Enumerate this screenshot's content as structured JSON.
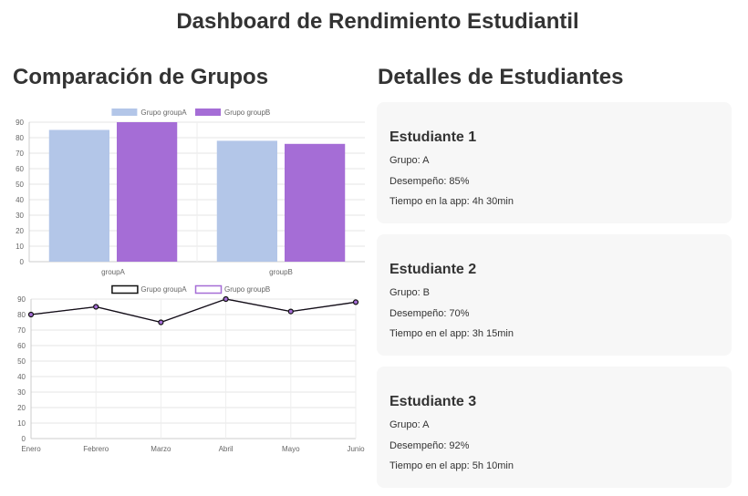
{
  "header": {
    "title": "Dashboard de Rendimiento Estudiantil"
  },
  "left": {
    "title": "Comparación de Grupos"
  },
  "right": {
    "title": "Detalles de Estudiantes"
  },
  "students": [
    {
      "name": "Estudiante 1",
      "group": "Grupo: A",
      "performance": "Desempeño: 85%",
      "time": "Tiempo en la app: 4h 30min"
    },
    {
      "name": "Estudiante 2",
      "group": "Grupo: B",
      "performance": "Desempeño: 70%",
      "time": "Tiempo en el app: 3h 15min"
    },
    {
      "name": "Estudiante 3",
      "group": "Grupo: A",
      "performance": "Desempeño: 92%",
      "time": "Tiempo en el app: 5h 10min"
    }
  ],
  "chart_data": [
    {
      "type": "bar",
      "categories": [
        "groupA",
        "groupB"
      ],
      "series": [
        {
          "name": "Grupo groupA",
          "values": [
            85,
            78
          ],
          "color": "#b3c6e8"
        },
        {
          "name": "Grupo groupB",
          "values": [
            90,
            76
          ],
          "color": "#a56dd6"
        }
      ],
      "ylim": [
        0,
        90
      ],
      "yticks": [
        0,
        10,
        20,
        30,
        40,
        50,
        60,
        70,
        80,
        90
      ],
      "legend": "top",
      "grid": true
    },
    {
      "type": "line",
      "categories": [
        "Enero",
        "Febrero",
        "Marzo",
        "Abril",
        "Mayo",
        "Junio"
      ],
      "series": [
        {
          "name": "Grupo groupA",
          "values": [
            80,
            85,
            75,
            90,
            82,
            88
          ],
          "color": "#111111"
        },
        {
          "name": "Grupo groupB",
          "values": [
            80,
            85,
            75,
            90,
            82,
            88
          ],
          "color": "#a56dd6"
        }
      ],
      "ylim": [
        0,
        90
      ],
      "yticks": [
        0,
        10,
        20,
        30,
        40,
        50,
        60,
        70,
        80,
        90
      ],
      "legend": "top",
      "grid": true
    }
  ]
}
